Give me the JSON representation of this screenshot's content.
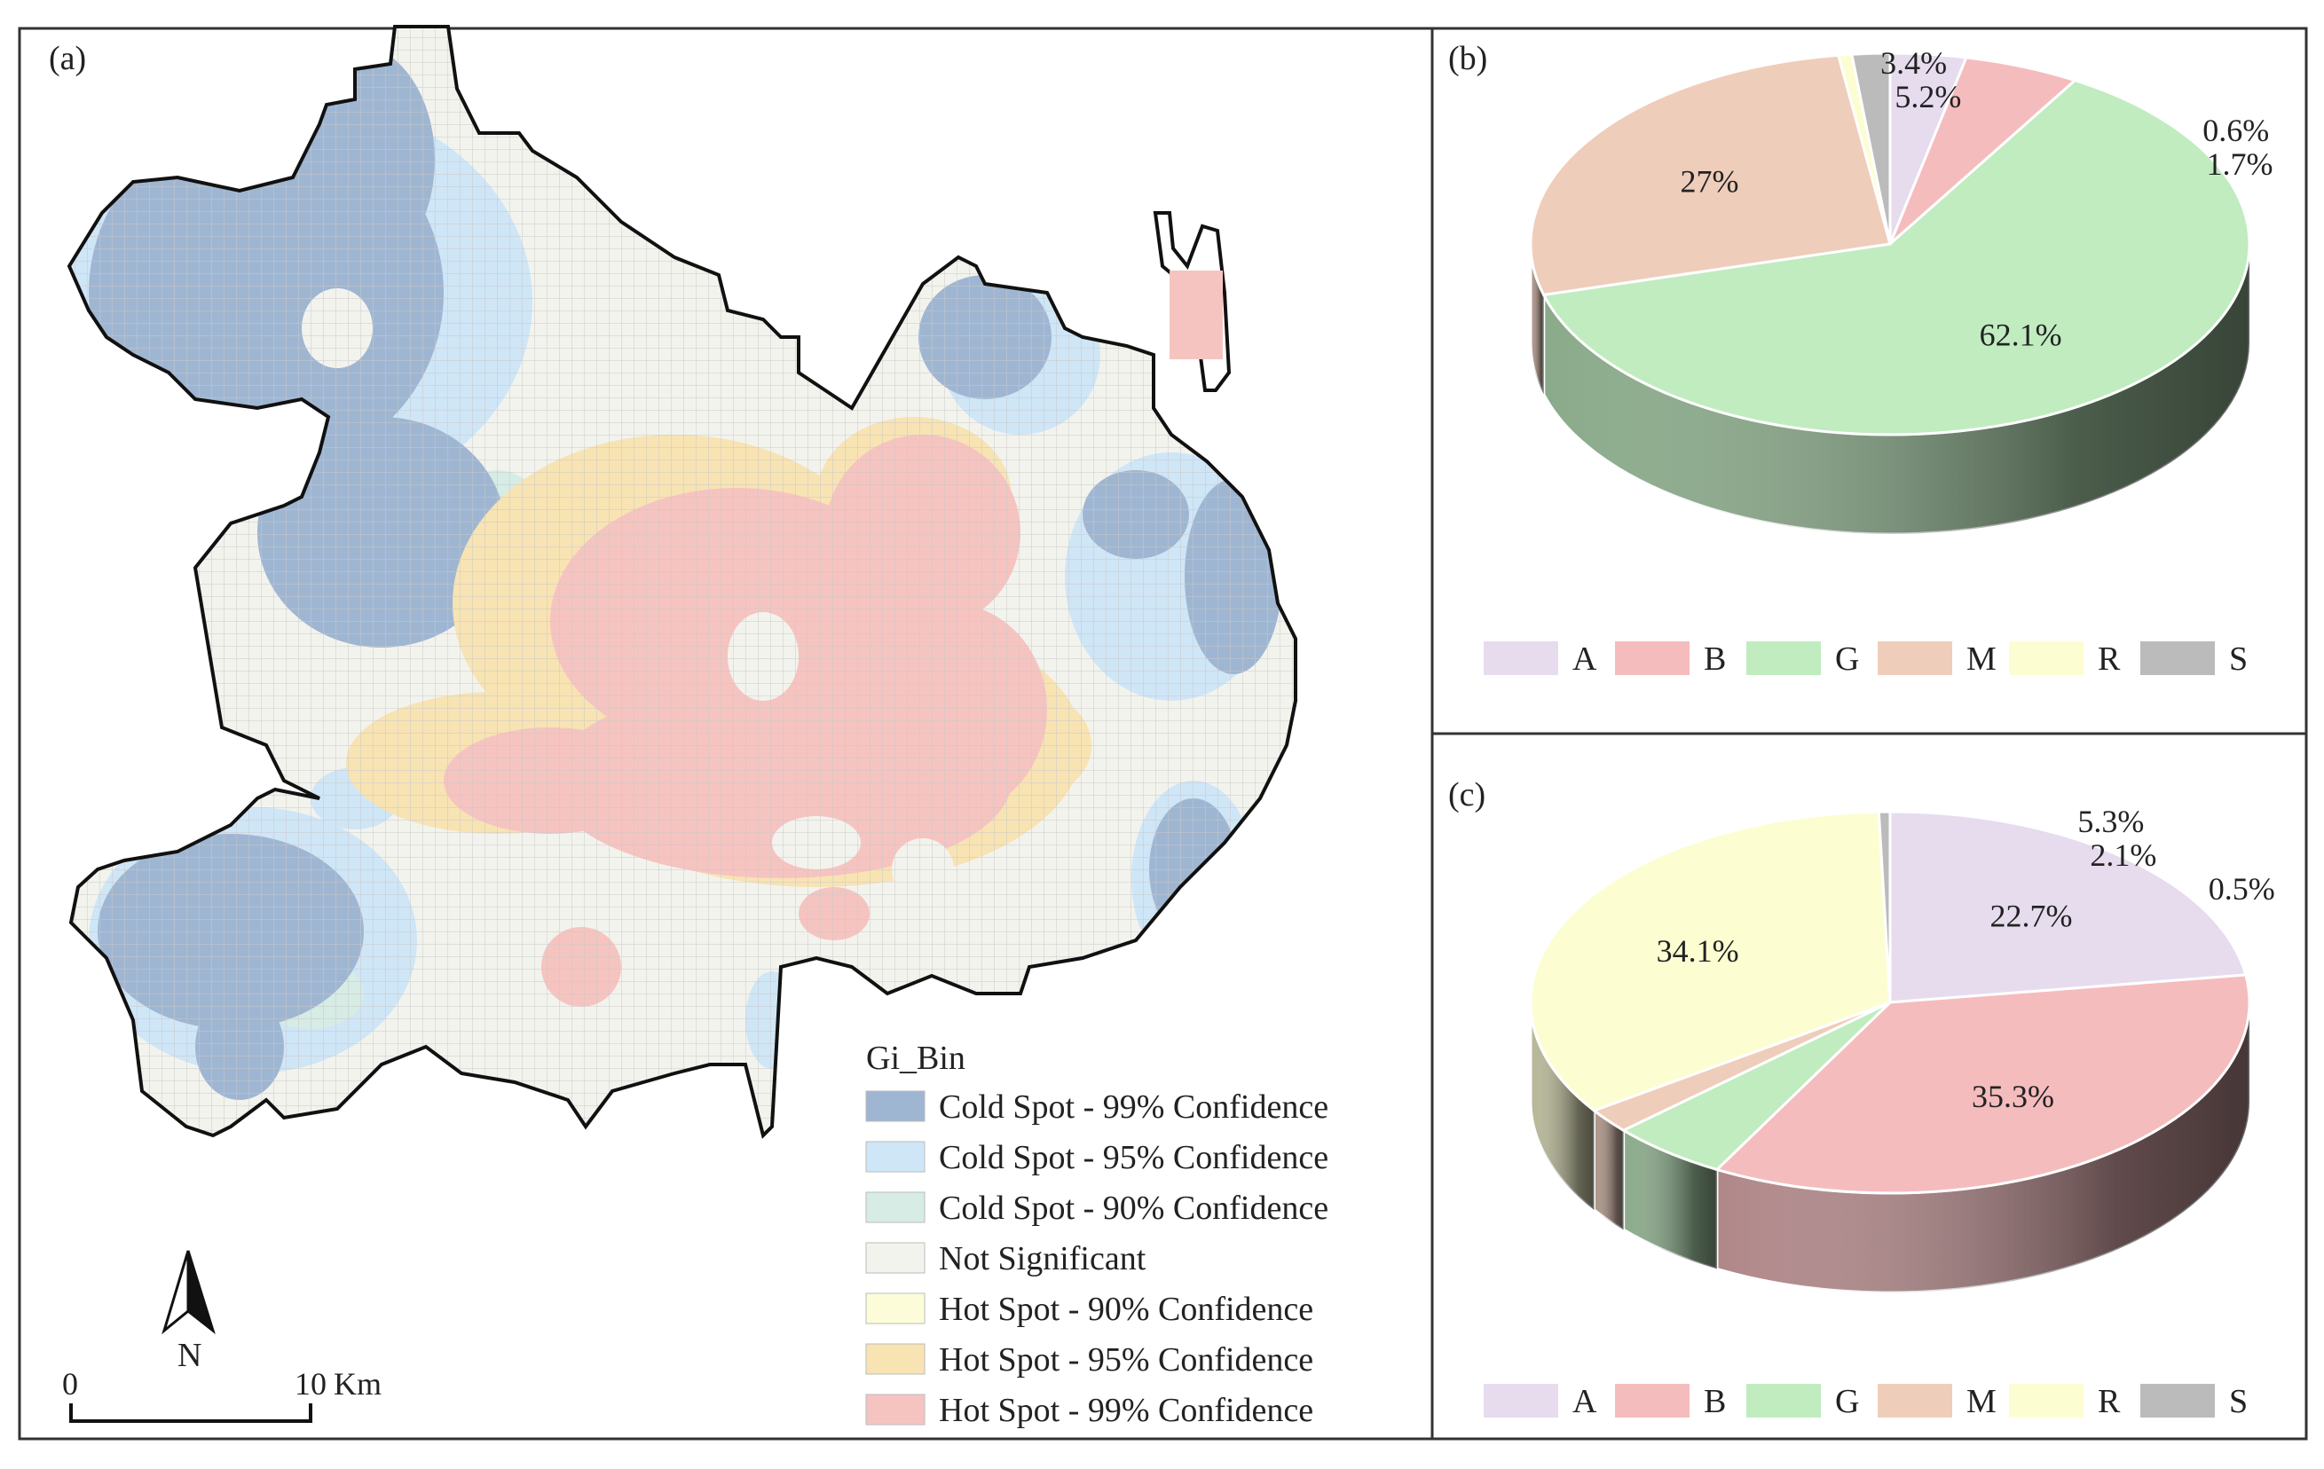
{
  "panels": {
    "a": {
      "label": "(a)"
    },
    "b": {
      "label": "(b)"
    },
    "c": {
      "label": "(c)"
    }
  },
  "map": {
    "legend_title": "Gi_Bin",
    "legend": [
      {
        "key": "cold99",
        "label": "Cold Spot - 99% Confidence",
        "color": "#9fb6d2"
      },
      {
        "key": "cold95",
        "label": "Cold Spot - 95% Confidence",
        "color": "#cfe6f7"
      },
      {
        "key": "cold90",
        "label": "Cold Spot - 90% Confidence",
        "color": "#d6ece4"
      },
      {
        "key": "ns",
        "label": "Not Significant",
        "color": "#f3f3ee"
      },
      {
        "key": "hot90",
        "label": "Hot Spot - 90% Confidence",
        "color": "#fdfcd9"
      },
      {
        "key": "hot95",
        "label": "Hot Spot - 95% Confidence",
        "color": "#f8e3b3"
      },
      {
        "key": "hot99",
        "label": "Hot Spot - 99% Confidence",
        "color": "#f6c4c0"
      }
    ],
    "north_label": "N",
    "scale": {
      "start": "0",
      "end": "10",
      "unit": "Km"
    }
  },
  "chart_data": [
    {
      "type": "pie",
      "panel": "(b)",
      "categories": [
        "A",
        "B",
        "G",
        "M",
        "R",
        "S"
      ],
      "values": [
        3.4,
        5.2,
        62.1,
        27,
        0.6,
        1.7
      ],
      "labels": [
        "3.4%",
        "5.2%",
        "62.1%",
        "27%",
        "0.6%",
        "1.7%"
      ],
      "colors": [
        "#e6dcee",
        "#f5bcbe",
        "#c0ecc0",
        "#efcdbb",
        "#fdfdd2",
        "#bbbbbb"
      ],
      "legend": [
        "A",
        "B",
        "G",
        "M",
        "R",
        "S"
      ],
      "legend_position": "bottom"
    },
    {
      "type": "pie",
      "panel": "(c)",
      "categories": [
        "A",
        "B",
        "G",
        "M",
        "R",
        "S"
      ],
      "values": [
        22.7,
        35.3,
        5.3,
        2.1,
        34.1,
        0.5
      ],
      "labels": [
        "22.7%",
        "35.3%",
        "5.3%",
        "2.1%",
        "34.1%",
        "0.5%"
      ],
      "colors": [
        "#e6dcee",
        "#f5bcbe",
        "#c0ecc0",
        "#efcdbb",
        "#fdfdd2",
        "#bbbbbb"
      ],
      "legend": [
        "A",
        "B",
        "G",
        "M",
        "R",
        "S"
      ],
      "legend_position": "bottom"
    }
  ]
}
